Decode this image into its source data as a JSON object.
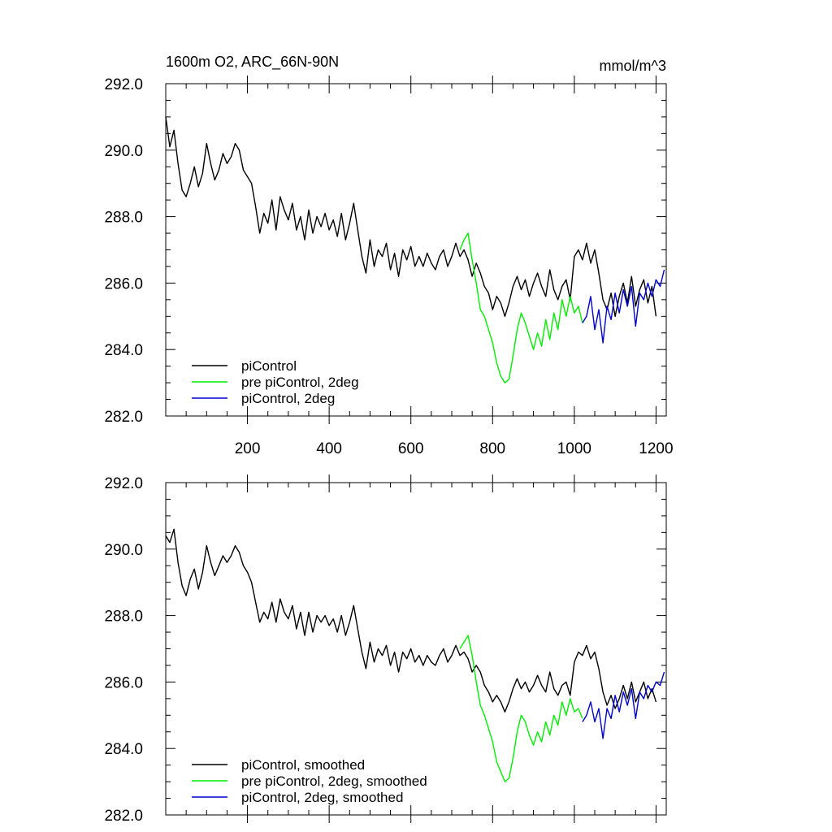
{
  "chart_data": [
    {
      "type": "line",
      "title": "1600m O2, ARC_66N-90N",
      "units_label": "mmol/m^3",
      "xlabel": "",
      "ylabel": "",
      "xlim": [
        0,
        1225
      ],
      "ylim": [
        282.0,
        292.0
      ],
      "x_ticks": [
        200,
        400,
        600,
        800,
        1000,
        1200
      ],
      "x_tick_labels": [
        "200",
        "400",
        "600",
        "800",
        "1000",
        "1200"
      ],
      "y_ticks": [
        282,
        284,
        286,
        288,
        290,
        292
      ],
      "y_tick_labels": [
        "282.0",
        "284.0",
        "286.0",
        "288.0",
        "290.0",
        "292.0"
      ],
      "grid": false,
      "legend_position": "bottom-left",
      "series": [
        {
          "name": "piControl",
          "color": "#000000",
          "x": [
            0,
            10,
            20,
            30,
            40,
            50,
            60,
            70,
            80,
            90,
            100,
            110,
            120,
            130,
            140,
            150,
            160,
            170,
            180,
            190,
            200,
            210,
            220,
            230,
            240,
            250,
            260,
            270,
            280,
            290,
            300,
            310,
            320,
            330,
            340,
            350,
            360,
            370,
            380,
            390,
            400,
            410,
            420,
            430,
            440,
            450,
            460,
            470,
            480,
            490,
            500,
            510,
            520,
            530,
            540,
            550,
            560,
            570,
            580,
            590,
            600,
            610,
            620,
            630,
            640,
            650,
            660,
            670,
            680,
            690,
            700,
            710,
            720,
            730,
            740,
            750,
            760,
            770,
            780,
            790,
            800,
            810,
            820,
            830,
            840,
            850,
            860,
            870,
            880,
            890,
            900,
            910,
            920,
            930,
            940,
            950,
            960,
            970,
            980,
            990,
            1000,
            1010,
            1020,
            1030,
            1040,
            1050,
            1060,
            1070,
            1080,
            1090,
            1100,
            1110,
            1120,
            1130,
            1140,
            1150,
            1160,
            1170,
            1180,
            1190,
            1200
          ],
          "values": [
            291.0,
            290.1,
            290.6,
            289.6,
            288.8,
            288.6,
            289.0,
            289.5,
            288.9,
            289.3,
            290.2,
            289.6,
            289.1,
            289.4,
            289.9,
            289.6,
            289.8,
            290.2,
            290.0,
            289.4,
            289.2,
            289.0,
            288.3,
            287.5,
            288.1,
            287.8,
            288.5,
            287.6,
            288.6,
            288.2,
            287.9,
            288.4,
            287.6,
            288.0,
            287.3,
            288.2,
            287.5,
            288.0,
            287.7,
            288.1,
            287.6,
            287.9,
            287.4,
            288.1,
            287.3,
            287.8,
            288.4,
            287.6,
            286.8,
            286.3,
            287.3,
            286.5,
            287.0,
            286.8,
            287.2,
            286.4,
            286.9,
            286.2,
            287.0,
            286.7,
            287.1,
            286.5,
            286.8,
            286.5,
            286.9,
            286.6,
            286.4,
            286.8,
            287.0,
            286.5,
            286.8,
            287.2,
            286.8,
            287.0,
            286.7,
            286.2,
            286.6,
            286.3,
            285.9,
            285.7,
            285.2,
            285.6,
            285.4,
            285.0,
            285.4,
            285.9,
            286.2,
            285.8,
            286.1,
            285.6,
            286.0,
            286.3,
            285.9,
            285.6,
            286.4,
            285.8,
            285.5,
            285.9,
            286.1,
            285.5,
            286.8,
            287.0,
            286.7,
            287.2,
            286.6,
            287.0,
            286.3,
            285.5,
            285.2,
            285.7,
            285.0,
            285.6,
            286.0,
            285.4,
            286.2,
            285.3,
            285.8,
            286.1,
            285.4,
            285.9,
            285.0
          ]
        },
        {
          "name": "pre piControl, 2deg",
          "color": "#00ee00",
          "x": [
            720,
            730,
            740,
            750,
            760,
            770,
            780,
            790,
            800,
            810,
            820,
            830,
            840,
            850,
            860,
            870,
            880,
            890,
            900,
            910,
            920,
            930,
            940,
            950,
            960,
            970,
            980,
            990,
            1000,
            1010,
            1020
          ],
          "values": [
            287.0,
            287.3,
            287.5,
            286.7,
            286.0,
            285.2,
            285.0,
            284.6,
            284.2,
            283.6,
            283.2,
            283.0,
            283.1,
            283.8,
            284.6,
            285.1,
            284.8,
            284.4,
            284.0,
            284.5,
            284.1,
            284.9,
            284.3,
            285.1,
            284.6,
            285.5,
            285.0,
            285.6,
            285.1,
            285.3,
            284.8
          ]
        },
        {
          "name": "piControl, 2deg",
          "color": "#0000cc",
          "x": [
            1020,
            1030,
            1040,
            1050,
            1060,
            1070,
            1080,
            1090,
            1100,
            1110,
            1120,
            1130,
            1140,
            1150,
            1160,
            1170,
            1180,
            1190,
            1200,
            1210,
            1220
          ],
          "values": [
            284.8,
            285.0,
            285.6,
            284.6,
            285.2,
            284.2,
            285.3,
            284.9,
            285.7,
            285.1,
            285.8,
            285.3,
            285.9,
            284.7,
            285.7,
            285.5,
            286.0,
            285.6,
            286.1,
            285.9,
            286.4
          ]
        }
      ]
    },
    {
      "type": "line",
      "title": "",
      "xlabel": "",
      "ylabel": "",
      "xlim": [
        0,
        1225
      ],
      "ylim": [
        282.0,
        292.0
      ],
      "x_ticks": [
        200,
        400,
        600,
        800,
        1000,
        1200
      ],
      "x_tick_labels": [],
      "y_ticks": [
        282,
        284,
        286,
        288,
        290,
        292
      ],
      "y_tick_labels": [
        "282.0",
        "284.0",
        "286.0",
        "288.0",
        "290.0",
        "292.0"
      ],
      "grid": false,
      "legend_position": "bottom-left",
      "series": [
        {
          "name": "piControl, smoothed",
          "color": "#000000",
          "x": [
            0,
            10,
            20,
            30,
            40,
            50,
            60,
            70,
            80,
            90,
            100,
            110,
            120,
            130,
            140,
            150,
            160,
            170,
            180,
            190,
            200,
            210,
            220,
            230,
            240,
            250,
            260,
            270,
            280,
            290,
            300,
            310,
            320,
            330,
            340,
            350,
            360,
            370,
            380,
            390,
            400,
            410,
            420,
            430,
            440,
            450,
            460,
            470,
            480,
            490,
            500,
            510,
            520,
            530,
            540,
            550,
            560,
            570,
            580,
            590,
            600,
            610,
            620,
            630,
            640,
            650,
            660,
            670,
            680,
            690,
            700,
            710,
            720,
            730,
            740,
            750,
            760,
            770,
            780,
            790,
            800,
            810,
            820,
            830,
            840,
            850,
            860,
            870,
            880,
            890,
            900,
            910,
            920,
            930,
            940,
            950,
            960,
            970,
            980,
            990,
            1000,
            1010,
            1020,
            1030,
            1040,
            1050,
            1060,
            1070,
            1080,
            1090,
            1100,
            1110,
            1120,
            1130,
            1140,
            1150,
            1160,
            1170,
            1180,
            1190,
            1200
          ],
          "values": [
            290.4,
            290.2,
            290.6,
            289.6,
            288.9,
            288.6,
            289.1,
            289.4,
            288.8,
            289.3,
            290.1,
            289.6,
            289.2,
            289.5,
            289.8,
            289.6,
            289.8,
            290.1,
            289.9,
            289.5,
            289.3,
            289.0,
            288.4,
            287.8,
            288.1,
            287.9,
            288.4,
            287.8,
            288.5,
            288.1,
            287.9,
            288.3,
            287.6,
            288.1,
            287.4,
            288.1,
            287.5,
            288.0,
            287.8,
            288.0,
            287.7,
            287.9,
            287.5,
            288.0,
            287.4,
            287.8,
            288.3,
            287.6,
            286.9,
            286.4,
            287.2,
            286.6,
            287.0,
            286.8,
            287.1,
            286.5,
            286.9,
            286.3,
            286.9,
            286.7,
            287.0,
            286.6,
            286.8,
            286.5,
            286.8,
            286.6,
            286.5,
            286.8,
            287.0,
            286.6,
            286.8,
            287.1,
            286.8,
            286.9,
            286.7,
            286.3,
            286.5,
            286.3,
            285.9,
            285.7,
            285.4,
            285.6,
            285.4,
            285.1,
            285.4,
            285.8,
            286.1,
            285.8,
            286.0,
            285.7,
            285.9,
            286.2,
            285.9,
            285.7,
            286.3,
            285.8,
            285.6,
            285.9,
            286.0,
            285.6,
            286.6,
            286.9,
            286.8,
            287.1,
            286.7,
            286.9,
            286.4,
            285.7,
            285.3,
            285.6,
            285.2,
            285.5,
            285.9,
            285.5,
            286.0,
            285.4,
            285.7,
            286.0,
            285.5,
            285.8,
            285.4
          ]
        },
        {
          "name": "pre piControl, 2deg, smoothed",
          "color": "#00ee00",
          "x": [
            720,
            730,
            740,
            750,
            760,
            770,
            780,
            790,
            800,
            810,
            820,
            830,
            840,
            850,
            860,
            870,
            880,
            890,
            900,
            910,
            920,
            930,
            940,
            950,
            960,
            970,
            980,
            990,
            1000,
            1010,
            1020
          ],
          "values": [
            287.0,
            287.2,
            287.4,
            286.8,
            286.0,
            285.3,
            285.0,
            284.6,
            284.2,
            283.6,
            283.3,
            283.0,
            283.1,
            283.7,
            284.5,
            285.0,
            284.8,
            284.4,
            284.1,
            284.5,
            284.2,
            284.8,
            284.4,
            285.0,
            284.7,
            285.4,
            285.0,
            285.5,
            285.1,
            285.2,
            284.9
          ]
        },
        {
          "name": "piControl, 2deg, smoothed",
          "color": "#0000cc",
          "x": [
            1020,
            1030,
            1040,
            1050,
            1060,
            1070,
            1080,
            1090,
            1100,
            1110,
            1120,
            1130,
            1140,
            1150,
            1160,
            1170,
            1180,
            1190,
            1200,
            1210,
            1220
          ],
          "values": [
            284.8,
            285.0,
            285.4,
            284.8,
            285.2,
            284.3,
            285.2,
            284.9,
            285.6,
            285.1,
            285.7,
            285.3,
            285.8,
            284.9,
            285.7,
            285.5,
            285.9,
            285.7,
            286.0,
            285.9,
            286.3
          ]
        }
      ]
    }
  ]
}
